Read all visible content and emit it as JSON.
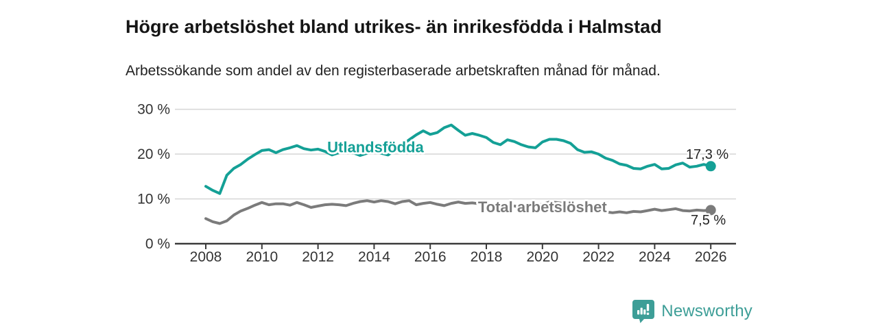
{
  "title": "Högre arbetslöshet bland utrikes- än inrikesfödda i Halmstad",
  "subtitle": "Arbetssökande som andel av den registerbaserade arbetskraften månad för månad.",
  "brand": {
    "name": "Newsworthy",
    "color": "#3d9e97",
    "icon": "bar-chart-bubble-icon"
  },
  "colors": {
    "foreign_born_line": "#14a096",
    "total_line": "#7b7b7b",
    "gridline": "#d8d8d8",
    "axis": "#3a3a3a",
    "tick_label": "#333333",
    "end_label": "#222222"
  },
  "chart_data": {
    "type": "line",
    "title": "Högre arbetslöshet bland utrikes- än inrikesfödda i Halmstad",
    "subtitle": "Arbetssökande som andel av den registerbaserade arbetskraften månad för månad.",
    "xlabel": "",
    "ylabel": "",
    "x_unit": "year (monthly series)",
    "y_unit": "%",
    "xlim": [
      2006.9,
      2026.9
    ],
    "ylim": [
      0,
      30
    ],
    "grid": "horizontal",
    "legend_position": "inline-labels",
    "x_ticks": [
      2008,
      2010,
      2012,
      2014,
      2016,
      2018,
      2020,
      2022,
      2024,
      2026
    ],
    "y_ticks": [
      0,
      10,
      20,
      30
    ],
    "y_tick_labels": [
      "0 %",
      "10 %",
      "20 %",
      "30 %"
    ],
    "x_start": 2008,
    "x_step": 0.25,
    "series": [
      {
        "name": "Total arbetslöshet",
        "color": "#7b7b7b",
        "end_label": "7,5 %",
        "end_value": 7.5,
        "label_at": {
          "x": 2020.0,
          "y": 7.0
        },
        "end_label_side": "below",
        "values": [
          5.6,
          4.9,
          4.5,
          5.1,
          6.4,
          7.3,
          7.9,
          8.6,
          9.2,
          8.7,
          8.9,
          8.9,
          8.6,
          9.2,
          8.7,
          8.1,
          8.4,
          8.7,
          8.8,
          8.7,
          8.5,
          9.0,
          9.4,
          9.6,
          9.3,
          9.6,
          9.4,
          8.9,
          9.4,
          9.6,
          8.7,
          9.0,
          9.2,
          8.8,
          8.5,
          9.0,
          9.3,
          9.0,
          9.1,
          8.9,
          8.6,
          8.3,
          8.4,
          8.6,
          8.4,
          8.2,
          8.3,
          8.5,
          8.8,
          9.3,
          9.2,
          9.0,
          8.7,
          8.3,
          7.9,
          7.6,
          7.4,
          7.1,
          6.9,
          7.1,
          6.9,
          7.2,
          7.1,
          7.4,
          7.7,
          7.4,
          7.6,
          7.8,
          7.4,
          7.3,
          7.5,
          7.4,
          7.5
        ]
      },
      {
        "name": "Utlandsfödda",
        "color": "#14a096",
        "end_label": "17,3 %",
        "end_value": 17.3,
        "label_at": {
          "x": 2014.05,
          "y": 20.4
        },
        "end_label_side": "above",
        "values": [
          12.8,
          11.9,
          11.2,
          15.3,
          16.8,
          17.7,
          18.9,
          19.9,
          20.8,
          21.0,
          20.3,
          21.0,
          21.4,
          21.9,
          21.2,
          20.9,
          21.1,
          20.6,
          19.8,
          20.3,
          20.9,
          20.3,
          19.7,
          20.2,
          20.6,
          20.2,
          19.8,
          21.0,
          22.0,
          23.2,
          24.3,
          25.2,
          24.4,
          24.8,
          25.9,
          26.5,
          25.3,
          24.2,
          24.6,
          24.2,
          23.7,
          22.6,
          22.1,
          23.2,
          22.8,
          22.1,
          21.6,
          21.4,
          22.7,
          23.3,
          23.3,
          23.0,
          22.4,
          21.0,
          20.4,
          20.5,
          20.0,
          19.1,
          18.6,
          17.8,
          17.5,
          16.8,
          16.7,
          17.3,
          17.7,
          16.7,
          16.8,
          17.6,
          18.0,
          17.1,
          17.3,
          17.7,
          17.3
        ]
      }
    ]
  }
}
